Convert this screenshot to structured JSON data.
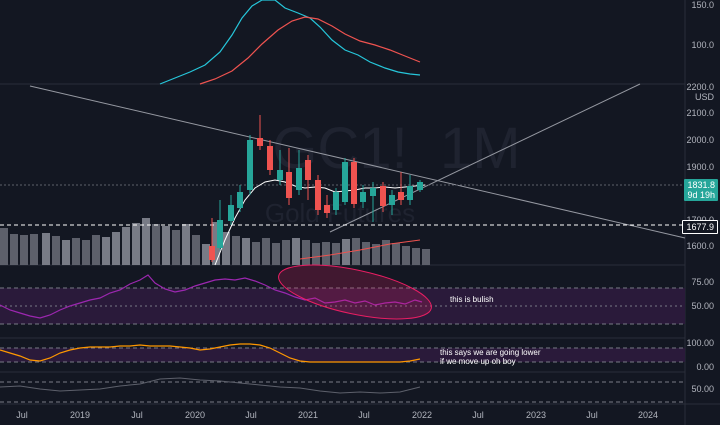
{
  "symbol": {
    "ticker": "GC1!",
    "interval": "1M",
    "name": "Gold Futures"
  },
  "top_pane": {
    "tick_labels": [
      "150.0",
      "100.0"
    ]
  },
  "price_pane": {
    "tick_labels": [
      "2200.0",
      "USD",
      "2100.0",
      "2000.0",
      "1900.0",
      "1700.0",
      "1600.0"
    ],
    "last_price": {
      "value": "1831.8",
      "countdown": "9d 19h",
      "color": "#26a69a"
    },
    "level_tag": {
      "value": "1677.9"
    }
  },
  "rsi_pane": {
    "tick_labels": [
      "75.00",
      "50.00"
    ],
    "annotation": "this is bulish"
  },
  "osc_pane": {
    "tick_labels": [
      "100.00",
      "0.00"
    ],
    "annotation_line1": "this says we are going lower",
    "annotation_line2": "if we move up oh boy"
  },
  "bottom_pane": {
    "tick_labels": [
      "50.00"
    ]
  },
  "time_axis": {
    "labels": [
      "Jul",
      "2019",
      "Jul",
      "2020",
      "Jul",
      "2021",
      "Jul",
      "2022",
      "Jul",
      "2023",
      "Jul",
      "2024"
    ]
  },
  "colors": {
    "up": "#26a69a",
    "down": "#ef5350",
    "background": "#131722",
    "rsi_fill": "#2a1a3a"
  }
}
